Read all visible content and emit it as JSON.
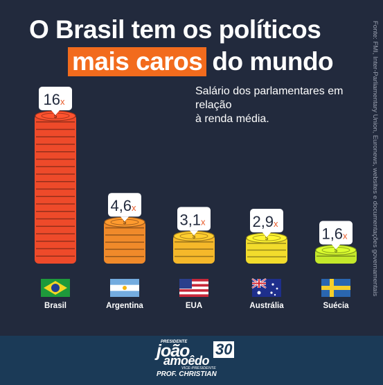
{
  "title": {
    "line1": "O Brasil tem os políticos",
    "highlight": "mais caros",
    "rest": "do mundo"
  },
  "subtitle_line1": "Salário dos parlamentares em relação",
  "subtitle_line2": "à renda média.",
  "source": "Fonte: FMI, Inter-Parliamentary Union, Euronews, websites e documentações governamentais",
  "footer": {
    "president_label": "PRESIDENTE",
    "name1": "joão",
    "number": "30",
    "name2": "amoêdo",
    "vice_label": "VICE-PRESIDENTE",
    "vice_name": "PROF. CHRISTIAN"
  },
  "colors": {
    "background": "#222a3d",
    "highlight": "#f26b1d",
    "footer": "#1b3a57"
  },
  "chart_data": {
    "type": "bar",
    "categories": [
      "Brasil",
      "Argentina",
      "EUA",
      "Austrália",
      "Suécia"
    ],
    "values": [
      16,
      4.6,
      3.1,
      2.9,
      1.6
    ],
    "data_labels": [
      "16",
      "4,6",
      "3,1",
      "2,9",
      "1,6"
    ],
    "suffix": "x",
    "title": "O Brasil tem os políticos mais caros do mundo",
    "subtitle": "Salário dos parlamentares em relação à renda média.",
    "bar_colors": [
      "#ee4a2a",
      "#f08a2a",
      "#f5b82a",
      "#f2dc2c",
      "#c4e82a"
    ],
    "flag_icons": [
      "brazil-flag-icon",
      "argentina-flag-icon",
      "usa-flag-icon",
      "australia-flag-icon",
      "sweden-flag-icon"
    ]
  }
}
